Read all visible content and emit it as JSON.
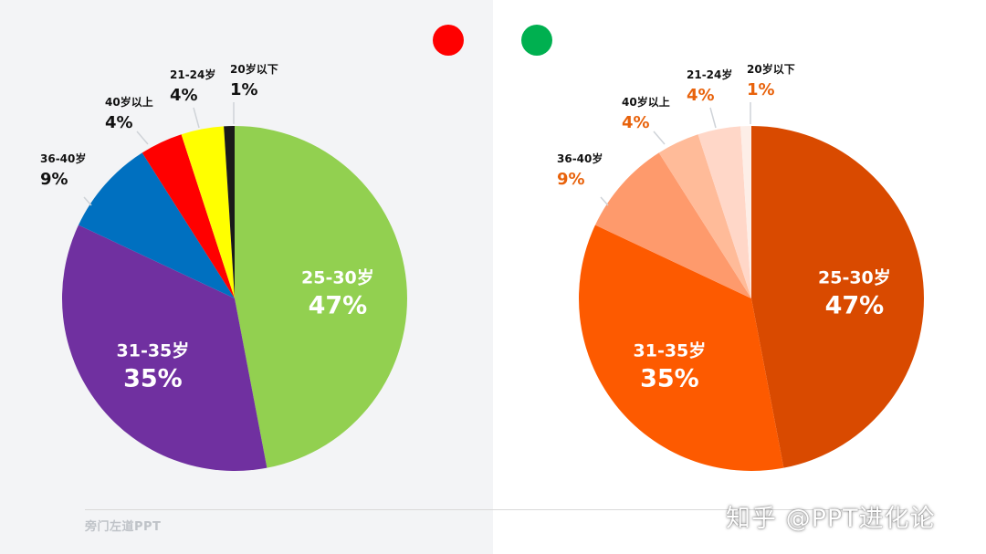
{
  "colors": {
    "left_panel_bg": "#f3f4f6",
    "indicator_red": "#ff0000",
    "indicator_green": "#00b050"
  },
  "indicators": [
    "red-dot",
    "green-dot"
  ],
  "footer": {
    "brand": "旁门左道PPT",
    "watermark": "知乎 @PPT进化论"
  },
  "chart_data": [
    {
      "type": "pie",
      "title": "",
      "categories": [
        "25-30岁",
        "31-35岁",
        "36-40岁",
        "40岁以上",
        "21-24岁",
        "20岁以下"
      ],
      "values": [
        47,
        35,
        9,
        4,
        4,
        1
      ],
      "value_labels": [
        "47%",
        "35%",
        "9%",
        "4%",
        "4%",
        "1%"
      ],
      "colors": [
        "#92d050",
        "#7030a0",
        "#0070c0",
        "#ff0000",
        "#ffff00",
        "#1a1a1a"
      ],
      "label_color_inside": "#ffffff",
      "label_color_outside": "#111111",
      "start_angle_deg": 0,
      "direction": "clockwise",
      "legend": "none"
    },
    {
      "type": "pie",
      "title": "",
      "categories": [
        "25-30岁",
        "31-35岁",
        "36-40岁",
        "40岁以上",
        "21-24岁",
        "20岁以下"
      ],
      "values": [
        47,
        35,
        9,
        4,
        4,
        1
      ],
      "value_labels": [
        "47%",
        "35%",
        "9%",
        "4%",
        "4%",
        "1%"
      ],
      "colors": [
        "#d94a00",
        "#fd5a00",
        "#fe9a6c",
        "#ffbb99",
        "#ffd7c8",
        "#fdeee7"
      ],
      "label_color_inside": "#ffffff",
      "label_color_outside": "#111111",
      "value_color_outside": "#e8620b",
      "start_angle_deg": 0,
      "direction": "clockwise",
      "legend": "none"
    }
  ]
}
